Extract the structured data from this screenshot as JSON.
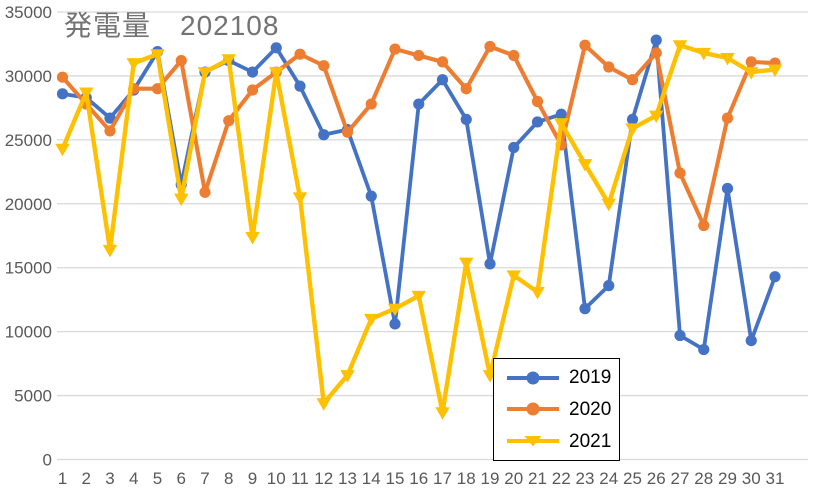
{
  "title": "発電量　202108",
  "colors": {
    "background": "#ffffff",
    "grid": "#d9d9d9",
    "axis_text": "#595959",
    "title_text": "#737373",
    "legend_border": "#000000",
    "legend_text": "#000000",
    "series_2019": "#4472c4",
    "series_2020": "#ed7d31",
    "series_2021": "#ffc000"
  },
  "legend": {
    "position": "inside-bottom-right",
    "items": [
      {
        "label": "2019",
        "marker": "circle"
      },
      {
        "label": "2020",
        "marker": "circle"
      },
      {
        "label": "2021",
        "marker": "triangle-down"
      }
    ]
  },
  "chart_data": {
    "type": "line",
    "title": "発電量　202108",
    "xlabel": "",
    "ylabel": "",
    "grid": true,
    "legend_position": "inside-bottom-right",
    "ylim": [
      0,
      35000
    ],
    "yticks": [
      0,
      5000,
      10000,
      15000,
      20000,
      25000,
      30000,
      35000
    ],
    "categories": [
      1,
      2,
      3,
      4,
      5,
      6,
      7,
      8,
      9,
      10,
      11,
      12,
      13,
      14,
      15,
      16,
      17,
      18,
      19,
      20,
      21,
      22,
      23,
      24,
      25,
      26,
      27,
      28,
      29,
      30,
      31
    ],
    "series": [
      {
        "name": "2019",
        "color": "#4472c4",
        "marker": "circle",
        "values": [
          28600,
          28300,
          26700,
          28900,
          31900,
          21500,
          30300,
          31200,
          30300,
          32200,
          29200,
          25400,
          25800,
          20600,
          10600,
          27800,
          29700,
          26600,
          15300,
          24400,
          26400,
          27000,
          11800,
          13600,
          26600,
          32800,
          9700,
          8600,
          21200,
          9300,
          14300
        ]
      },
      {
        "name": "2020",
        "color": "#ed7d31",
        "marker": "circle",
        "values": [
          29900,
          27800,
          25700,
          29000,
          29000,
          31200,
          20900,
          26500,
          28900,
          30300,
          31700,
          30800,
          25600,
          27800,
          32100,
          31600,
          31100,
          29000,
          32300,
          31600,
          28000,
          24600,
          32400,
          30700,
          29700,
          31800,
          22400,
          18300,
          26700,
          31100,
          31000
        ]
      },
      {
        "name": "2021",
        "color": "#ffc000",
        "marker": "triangle-down",
        "values": [
          24300,
          28700,
          16400,
          31000,
          31700,
          20400,
          30300,
          31300,
          17400,
          30300,
          20500,
          4400,
          6600,
          11000,
          11800,
          12800,
          3700,
          15400,
          6600,
          14400,
          13100,
          26300,
          23100,
          20000,
          25900,
          26900,
          32400,
          31800,
          31400,
          30300,
          30500
        ]
      }
    ]
  }
}
